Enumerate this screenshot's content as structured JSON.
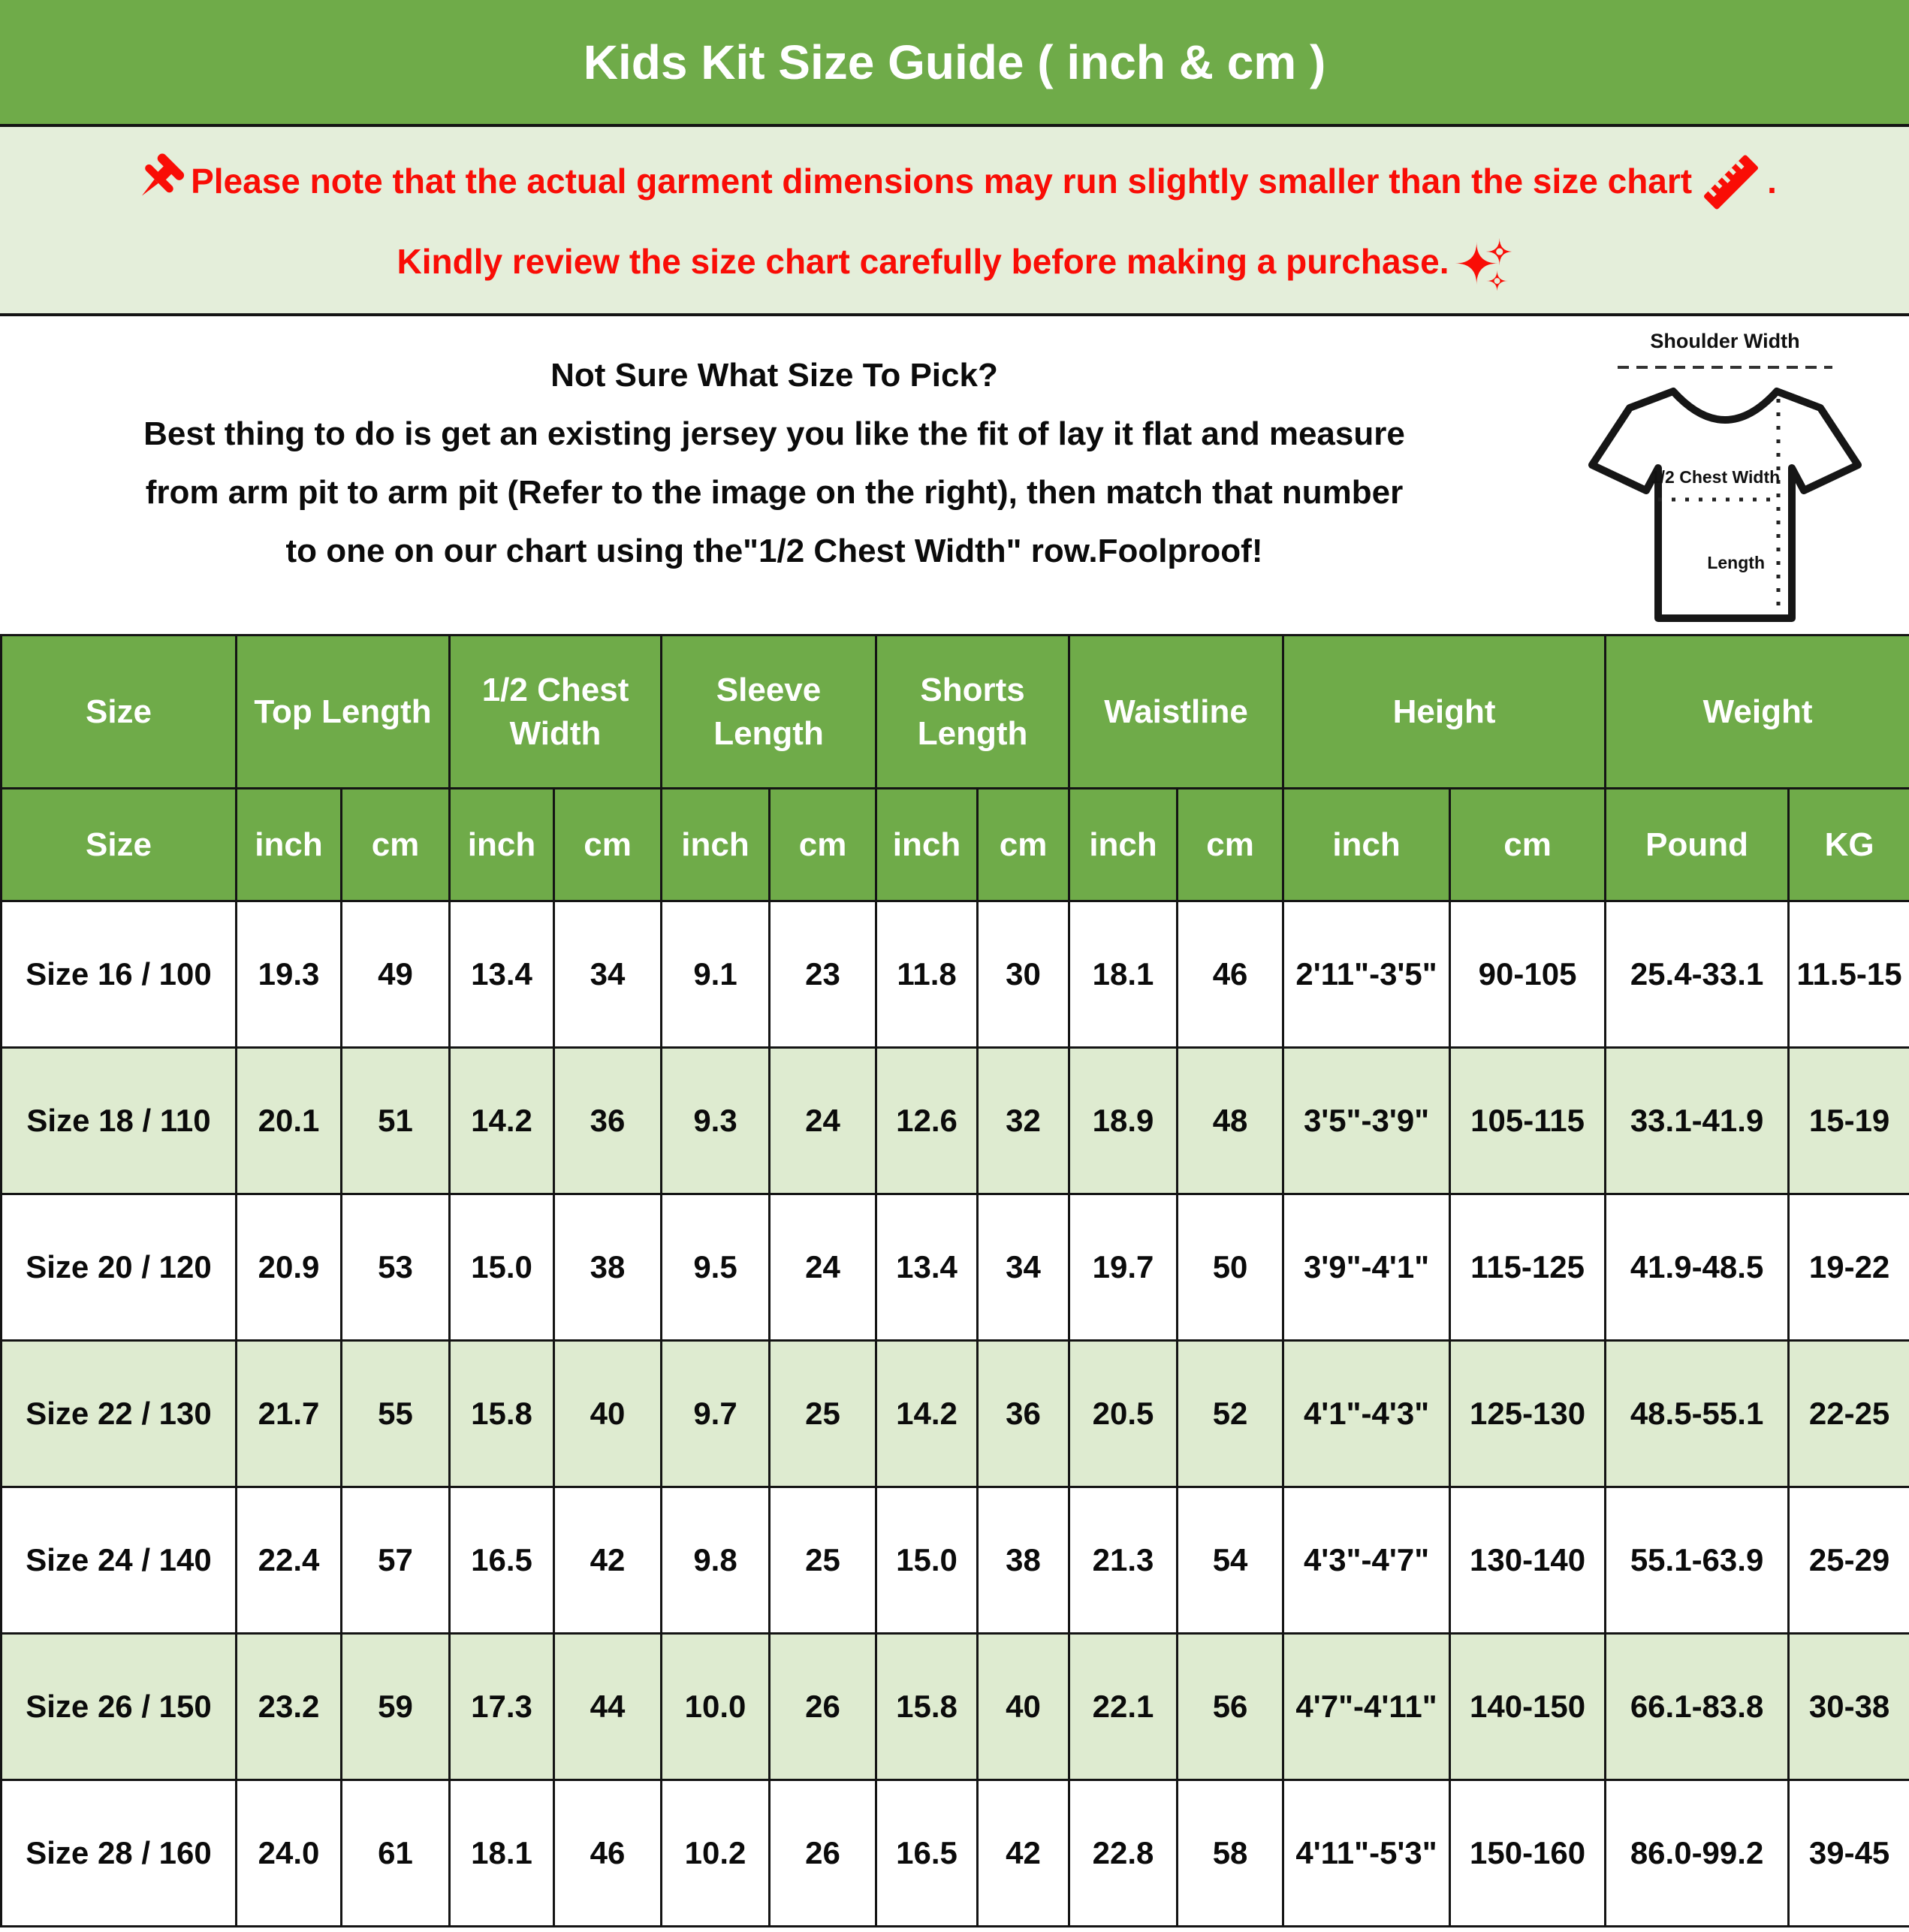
{
  "title": "Kids Kit Size Guide ( inch & cm )",
  "notice": {
    "line1": "Please note that the actual garment dimensions may run slightly smaller than the size chart",
    "line1_end": ".",
    "line2": "Kindly review the size chart carefully before making a purchase.",
    "accent_color": "#f90d06"
  },
  "help": {
    "heading": "Not Sure What Size To Pick?",
    "line2": "Best thing to do is get an existing jersey you like the fit of lay it flat and measure",
    "line3": "from arm pit to arm pit (Refer to the image on the right), then match that number",
    "line4": "to one on our chart using the\"1/2 Chest Width\" row.Foolproof!"
  },
  "diagram": {
    "shoulder_label": "Shoulder Width",
    "chest_label": "1/2 Chest Width",
    "length_label": "Length"
  },
  "colors": {
    "header_green": "#6fab49",
    "notice_bg": "#e4eeda",
    "alt_row_bg": "#deebd0",
    "red": "#f90d06"
  },
  "chart_data": {
    "type": "table",
    "groups": [
      {
        "label": "Size",
        "cols": 1
      },
      {
        "label": "Top Length",
        "cols": 2
      },
      {
        "label": "1/2 Chest Width",
        "cols": 2
      },
      {
        "label": "Sleeve Length",
        "cols": 2
      },
      {
        "label": "Shorts Length",
        "cols": 2
      },
      {
        "label": "Waistline",
        "cols": 2
      },
      {
        "label": "Height",
        "cols": 2
      },
      {
        "label": "Weight",
        "cols": 2
      }
    ],
    "subheaders": [
      "Size",
      "inch",
      "cm",
      "inch",
      "cm",
      "inch",
      "cm",
      "inch",
      "cm",
      "inch",
      "cm",
      "inch",
      "cm",
      "Pound",
      "KG"
    ],
    "rows": [
      [
        "Size 16 / 100",
        "19.3",
        "49",
        "13.4",
        "34",
        "9.1",
        "23",
        "11.8",
        "30",
        "18.1",
        "46",
        "2'11\"-3'5\"",
        "90-105",
        "25.4-33.1",
        "11.5-15"
      ],
      [
        "Size 18 / 110",
        "20.1",
        "51",
        "14.2",
        "36",
        "9.3",
        "24",
        "12.6",
        "32",
        "18.9",
        "48",
        "3'5\"-3'9\"",
        "105-115",
        "33.1-41.9",
        "15-19"
      ],
      [
        "Size 20 / 120",
        "20.9",
        "53",
        "15.0",
        "38",
        "9.5",
        "24",
        "13.4",
        "34",
        "19.7",
        "50",
        "3'9\"-4'1\"",
        "115-125",
        "41.9-48.5",
        "19-22"
      ],
      [
        "Size 22 / 130",
        "21.7",
        "55",
        "15.8",
        "40",
        "9.7",
        "25",
        "14.2",
        "36",
        "20.5",
        "52",
        "4'1\"-4'3\"",
        "125-130",
        "48.5-55.1",
        "22-25"
      ],
      [
        "Size 24 / 140",
        "22.4",
        "57",
        "16.5",
        "42",
        "9.8",
        "25",
        "15.0",
        "38",
        "21.3",
        "54",
        "4'3\"-4'7\"",
        "130-140",
        "55.1-63.9",
        "25-29"
      ],
      [
        "Size 26 / 150",
        "23.2",
        "59",
        "17.3",
        "44",
        "10.0",
        "26",
        "15.8",
        "40",
        "22.1",
        "56",
        "4'7\"-4'11\"",
        "140-150",
        "66.1-83.8",
        "30-38"
      ],
      [
        "Size 28 / 160",
        "24.0",
        "61",
        "18.1",
        "46",
        "10.2",
        "26",
        "16.5",
        "42",
        "22.8",
        "58",
        "4'11\"-5'3\"",
        "150-160",
        "86.0-99.2",
        "39-45"
      ]
    ]
  }
}
